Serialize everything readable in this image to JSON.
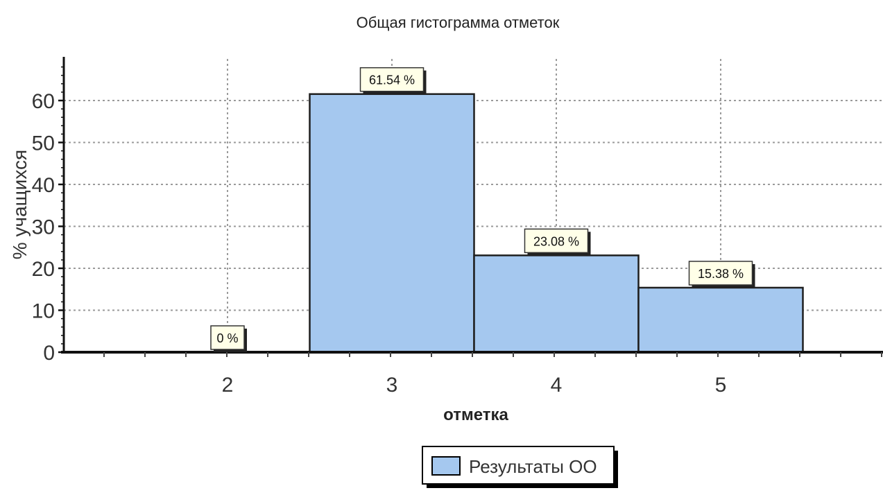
{
  "chart_data": {
    "type": "bar",
    "title": "Общая гистограмма отметок",
    "xlabel": "отметка",
    "ylabel": "% учащихся",
    "categories": [
      "2",
      "3",
      "4",
      "5"
    ],
    "series": [
      {
        "name": "Результаты ОО",
        "values": [
          0,
          61.54,
          23.08,
          15.38
        ],
        "labels": [
          "0 %",
          "61.54 %",
          "23.08 %",
          "15.38 %"
        ]
      }
    ],
    "ylim": [
      0,
      70
    ],
    "yticks": [
      0,
      10,
      20,
      30,
      40,
      50,
      60
    ],
    "grid": true,
    "legend": "bottom-center",
    "colors": {
      "bar_fill": "#a5c8ef",
      "bar_stroke": "#1f1f1f",
      "label_fill": "#ffffe8",
      "grid": "#9a9a9a"
    }
  }
}
